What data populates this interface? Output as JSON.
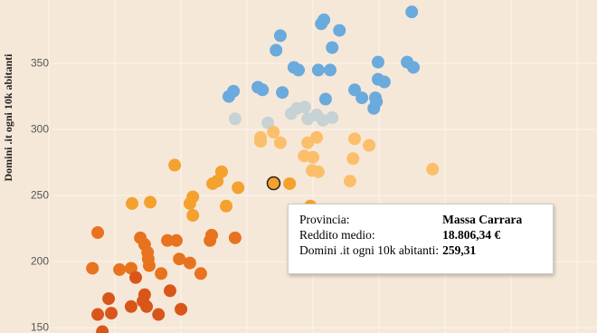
{
  "chart_data": {
    "type": "scatter",
    "y_label": "Domini .it ogni 10k abitanti",
    "xlim": [
      10520,
      28600
    ],
    "ylim": [
      146,
      398
    ],
    "yticks": [
      150,
      200,
      250,
      300,
      350
    ],
    "xgrid": [
      12000,
      14000,
      16000,
      18000,
      20000,
      22000,
      24000,
      26000,
      28000
    ],
    "grid": true,
    "series": [
      {
        "color": "#6aaadd",
        "x": [
          22990,
          20330,
          20250,
          20800,
          19010,
          20580,
          18880,
          19420,
          19560,
          20160,
          20520,
          21970,
          22850,
          23040,
          18330,
          18470,
          17590,
          17450,
          19070,
          21260,
          21480,
          21890,
          21970,
          22160,
          20380,
          21840,
          21920
        ],
        "values": [
          389,
          383,
          380,
          375,
          371,
          362,
          360,
          347,
          345,
          345,
          345,
          351,
          351,
          347,
          332,
          330,
          329,
          325,
          328,
          330,
          324,
          324,
          338,
          336,
          323,
          316,
          321
        ]
      },
      {
        "color": "#c6d2d4",
        "x": [
          17640,
          18630,
          19340,
          19750,
          19840,
          20110,
          20300,
          20580,
          19510
        ],
        "values": [
          308,
          305,
          312,
          317,
          308,
          311,
          307,
          309,
          316
        ]
      },
      {
        "color": "#fbbf6c",
        "x": [
          18410,
          18410,
          18800,
          19010,
          19840,
          20110,
          21260,
          21700,
          23620,
          19730,
          20000,
          19970,
          20160,
          21210,
          21120
        ],
        "values": [
          294,
          291,
          298,
          290,
          290,
          294,
          293,
          288,
          270,
          280,
          279,
          269,
          268,
          278,
          261
        ]
      },
      {
        "color": "#f4a12e",
        "x": [
          15810,
          17230,
          17100,
          16960,
          17730,
          19290,
          16360,
          16270,
          16360,
          14520,
          15070,
          17370,
          19920
        ],
        "values": [
          273,
          268,
          261,
          259,
          256,
          259,
          249,
          244,
          235,
          244,
          245,
          242,
          242
        ]
      },
      {
        "color": "#e8731f",
        "x": [
          13480,
          14770,
          14900,
          14990,
          15590,
          16930,
          16880,
          17640,
          15860,
          13320,
          14140,
          14490,
          15010,
          15040,
          15400,
          15950,
          16270,
          16600
        ],
        "values": [
          222,
          218,
          213,
          207,
          216,
          220,
          216,
          218,
          216,
          195,
          194,
          195,
          202,
          197,
          191,
          202,
          199,
          191
        ]
      },
      {
        "color": "#d9561b",
        "x": [
          14630,
          14900,
          14850,
          14960,
          15670,
          13810,
          14490,
          13890,
          13480,
          15320,
          16000,
          13620
        ],
        "values": [
          188,
          175,
          170,
          166,
          178,
          172,
          166,
          161,
          160,
          160,
          164,
          147
        ]
      },
      {
        "color": "#f4a12e",
        "stroke": "#222222",
        "x": [
          18806.34
        ],
        "values": [
          259.31
        ]
      }
    ]
  },
  "tooltip": {
    "rows": [
      [
        "Provincia:",
        "Massa Carrara"
      ],
      [
        "Reddito medio:",
        "18.806,34 €"
      ],
      [
        "Domini .it ogni 10k abitanti:",
        "259,31"
      ]
    ]
  }
}
